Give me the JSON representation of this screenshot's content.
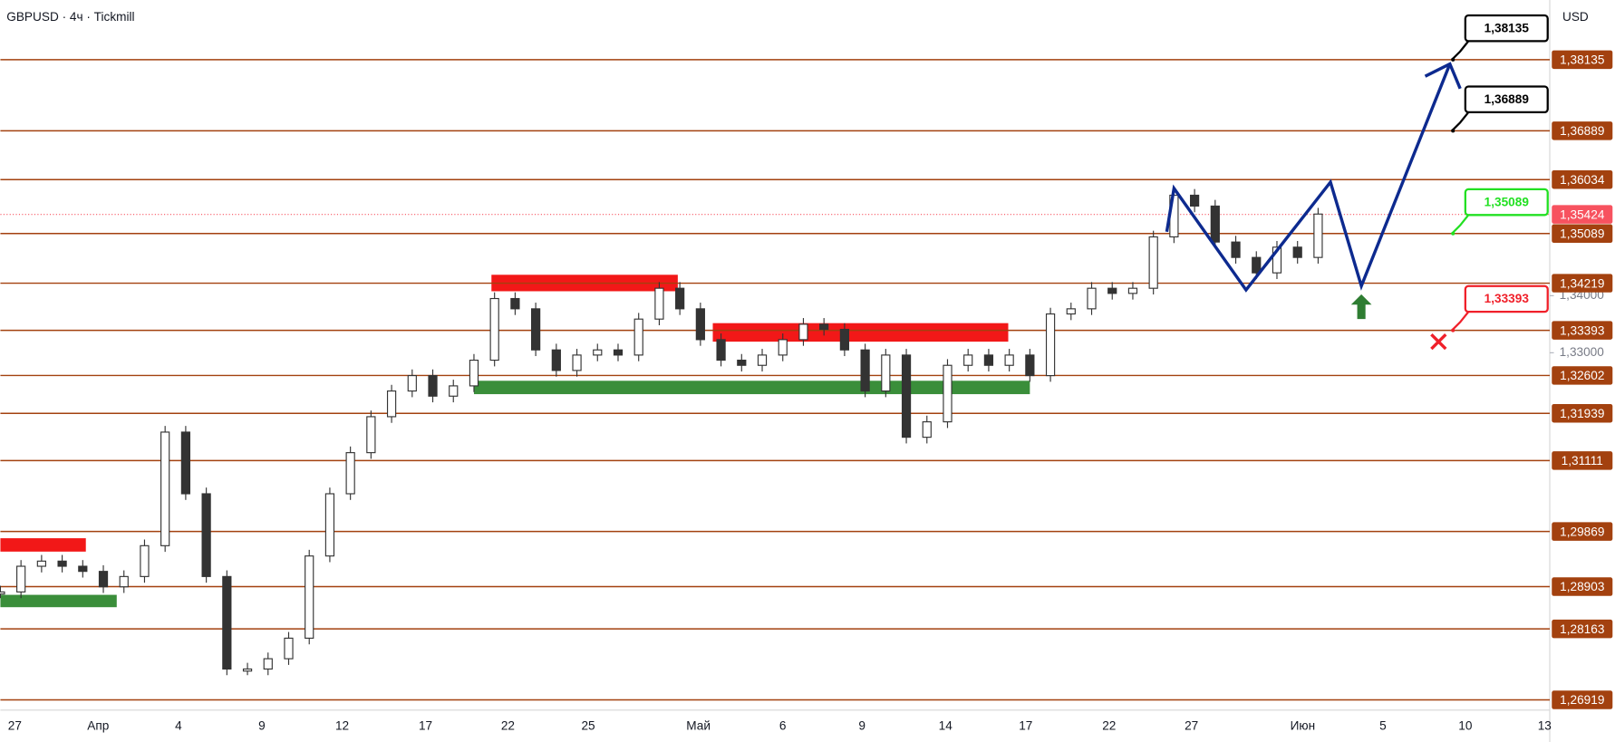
{
  "chart_data": {
    "type": "candlestick",
    "title": "GBPUSD · 4ч · Tickmill",
    "currency": "USD",
    "ylim": [
      1.2674,
      1.3918
    ],
    "yticks": [
      {
        "value": 1.33,
        "label": "1,33000"
      },
      {
        "value": 1.34,
        "label": "1,34000"
      }
    ],
    "x_labels": [
      "27",
      "Апр",
      "4",
      "9",
      "12",
      "17",
      "22",
      "25",
      "Май",
      "6",
      "9",
      "14",
      "17",
      "22",
      "27",
      "Июн",
      "5",
      "10",
      "13"
    ],
    "series": [
      {
        "name": "GBPUSD",
        "values": [
          1.2881,
          1.2926,
          1.2935,
          1.2926,
          1.2917,
          1.289,
          1.2908,
          1.2962,
          1.3161,
          1.3053,
          1.2908,
          1.2746,
          1.2746,
          1.2764,
          1.28,
          1.2944,
          1.3053,
          1.3125,
          1.3188,
          1.3233,
          1.326,
          1.3224,
          1.3242,
          1.3287,
          1.3395,
          1.3377,
          1.3305,
          1.3269,
          1.3296,
          1.3305,
          1.3296,
          1.3359,
          1.3413,
          1.3377,
          1.3323,
          1.3287,
          1.3278,
          1.3296,
          1.3323,
          1.335,
          1.3341,
          1.3305,
          1.3233,
          1.3296,
          1.3152,
          1.3179,
          1.3278,
          1.3296,
          1.3278,
          1.3296,
          1.326,
          1.3368,
          1.3377,
          1.3413,
          1.3404,
          1.3413,
          1.3503,
          1.3576,
          1.3557,
          1.3494,
          1.3467,
          1.344,
          1.3485,
          1.3467,
          1.3543
        ]
      }
    ],
    "projection": {
      "color": "#0d2a8f",
      "values": [
        1.3512,
        1.3588,
        1.341,
        1.3599,
        1.3417,
        1.3806
      ]
    },
    "levels": [
      {
        "value": 1.38135,
        "label": "1,38135"
      },
      {
        "value": 1.36889,
        "label": "1,36889"
      },
      {
        "value": 1.36034,
        "label": "1,36034"
      },
      {
        "value": 1.35089,
        "label": "1,35089"
      },
      {
        "value": 1.34219,
        "label": "1,34219"
      },
      {
        "value": 1.33393,
        "label": "1,33393"
      },
      {
        "value": 1.32602,
        "label": "1,32602"
      },
      {
        "value": 1.31939,
        "label": "1,31939"
      },
      {
        "value": 1.31111,
        "label": "1,31111"
      },
      {
        "value": 1.29869,
        "label": "1,29869"
      },
      {
        "value": 1.28903,
        "label": "1,28903"
      },
      {
        "value": 1.28163,
        "label": "1,28163"
      },
      {
        "value": 1.26919,
        "label": "1,26919"
      }
    ],
    "level_color": "#a3410f",
    "current_price": {
      "value": 1.35424,
      "label": "1,35424",
      "color": "#f7525f"
    },
    "callouts": [
      {
        "value": 1.38135,
        "label": "1,38135",
        "color": "#000000"
      },
      {
        "value": 1.36889,
        "label": "1,36889",
        "color": "#000000"
      },
      {
        "value": 1.35089,
        "label": "1,35089",
        "color": "#22e022"
      },
      {
        "value": 1.33393,
        "label": "1,33393",
        "color": "#f0202a"
      }
    ]
  }
}
